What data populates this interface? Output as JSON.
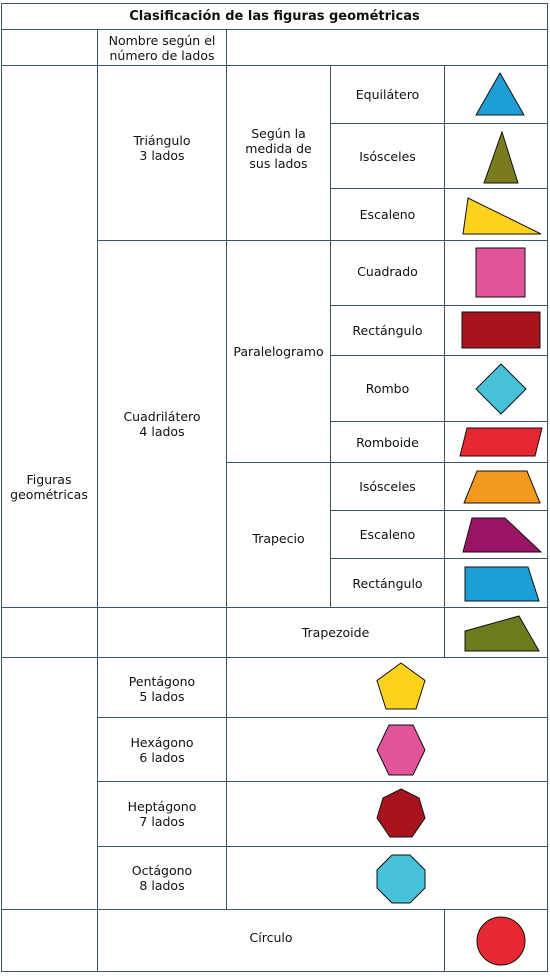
{
  "title": "Clasificación de las figuras geométricas",
  "header": {
    "name_col_line1": "Nombre según el",
    "name_col_line2": "número de lados"
  },
  "group_label": {
    "line1": "Figuras",
    "line2": "geométricas"
  },
  "triangle": {
    "name": "Triángulo",
    "sides": "3 lados",
    "criterion_line1": "Según la",
    "criterion_line2": "medida de",
    "criterion_line3": "sus lados",
    "types": [
      "Equilátero",
      "Isósceles",
      "Escaleno"
    ]
  },
  "quadrilateral": {
    "name": "Cuadrilátero",
    "sides": "4 lados",
    "parallelogram": {
      "label": "Paralelogramo",
      "types": [
        "Cuadrado",
        "Rectángulo",
        "Rombo",
        "Romboide"
      ]
    },
    "trapezium": {
      "label": "Trapecio",
      "types": [
        "Isósceles",
        "Escaleno",
        "Rectángulo"
      ]
    },
    "trapezoid": {
      "label": "Trapezoide"
    }
  },
  "polygons": [
    {
      "name": "Pentágono",
      "sides": "5 lados"
    },
    {
      "name": "Hexágono",
      "sides": "6 lados"
    },
    {
      "name": "Heptágono",
      "sides": "7 lados"
    },
    {
      "name": "Octágono",
      "sides": "8 lados"
    }
  ],
  "circle": {
    "name": "Círculo"
  },
  "colors": {
    "equilateral": "#1e9ed6",
    "isosceles_triangle": "#7a7a1e",
    "scalene_triangle": "#ffd21e",
    "square": "#e2549a",
    "rectangle": "#a8141e",
    "rhombus": "#46c1d8",
    "rhomboid": "#e82830",
    "isosceles_trapezium": "#f39a1e",
    "scalene_trapezium": "#9a1466",
    "right_trapezium": "#1e9ed6",
    "trapezoid": "#6e7a1e",
    "pentagon": "#ffd21e",
    "hexagon": "#e2549a",
    "heptagon": "#a8141e",
    "octagon": "#46c1d8",
    "circle": "#e82830",
    "grid": "#3d5566"
  }
}
